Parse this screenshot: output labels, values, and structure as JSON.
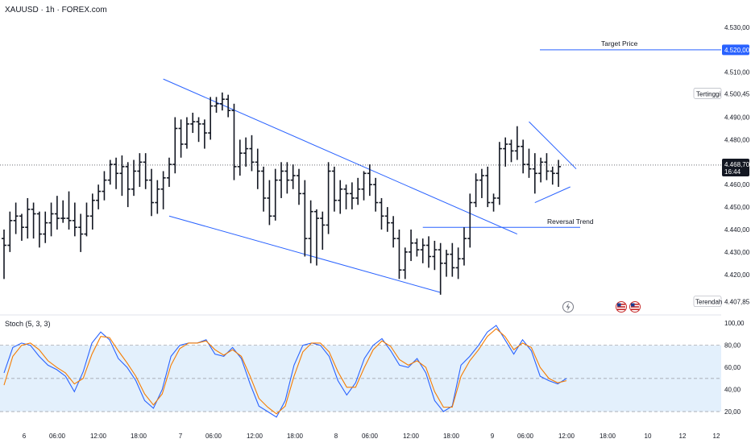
{
  "header": {
    "title": "XAUUSD · 1h · FOREX.com"
  },
  "chart_data": [
    {
      "type": "candlestick",
      "symbol": "XAUUSD",
      "timeframe": "1h",
      "broker": "FOREX.com",
      "ylim": [
        4402,
        4535
      ],
      "y_ticks": [
        {
          "value": 4530,
          "label": "4.530,00"
        },
        {
          "value": 4510,
          "label": "4.510,00"
        },
        {
          "value": 4490,
          "label": "4.490,00"
        },
        {
          "value": 4480,
          "label": "4.480,00"
        },
        {
          "value": 4460,
          "label": "4.460,00"
        },
        {
          "value": 4450,
          "label": "4.450,00"
        },
        {
          "value": 4440,
          "label": "4.440,00"
        },
        {
          "value": 4430,
          "label": "4.430,00"
        },
        {
          "value": 4420,
          "label": "4.420,00"
        }
      ],
      "x_ticks": [
        "6",
        "06:00",
        "12:00",
        "18:00",
        "7",
        "06:00",
        "12:00",
        "18:00",
        "8",
        "06:00",
        "12:00",
        "18:00",
        "9",
        "06:00",
        "12:00",
        "18:00",
        "10",
        "12",
        "12"
      ],
      "price_labels": {
        "target": {
          "value": 4520.0,
          "label": "4.520,00",
          "name": "Target Price"
        },
        "high": {
          "value": 4500.45,
          "label": "4.500,45",
          "name": "Tertinggi"
        },
        "current": {
          "value": 4468.7,
          "label": "4.468,70",
          "countdown": "16:44"
        },
        "low": {
          "value": 4407.85,
          "label": "4.407,85",
          "name": "Terendah"
        }
      },
      "annotations": [
        {
          "text": "Reversal Trend",
          "level": 4441
        }
      ],
      "bars": [
        [
          4436,
          4440,
          4418,
          4433
        ],
        [
          4433,
          4448,
          4430,
          4444
        ],
        [
          4444,
          4452,
          4438,
          4446
        ],
        [
          4446,
          4447,
          4435,
          4441
        ],
        [
          4441,
          4454,
          4436,
          4449
        ],
        [
          4449,
          4452,
          4436,
          4447
        ],
        [
          4447,
          4448,
          4432,
          4438
        ],
        [
          4438,
          4448,
          4434,
          4443
        ],
        [
          4443,
          4452,
          4437,
          4447
        ],
        [
          4447,
          4455,
          4440,
          4445
        ],
        [
          4445,
          4453,
          4443,
          4445
        ],
        [
          4445,
          4457,
          4440,
          4444
        ],
        [
          4444,
          4452,
          4437,
          4441
        ],
        [
          4441,
          4447,
          4430,
          4438
        ],
        [
          4438,
          4452,
          4437,
          4446
        ],
        [
          4446,
          4456,
          4440,
          4453
        ],
        [
          4453,
          4460,
          4449,
          4457
        ],
        [
          4457,
          4466,
          4453,
          4462
        ],
        [
          4462,
          4471,
          4460,
          4469
        ],
        [
          4469,
          4472,
          4458,
          4465
        ],
        [
          4465,
          4473,
          4455,
          4468
        ],
        [
          4468,
          4470,
          4450,
          4458
        ],
        [
          4458,
          4471,
          4455,
          4466
        ],
        [
          4466,
          4474,
          4459,
          4470
        ],
        [
          4470,
          4474,
          4458,
          4462
        ],
        [
          4462,
          4467,
          4446,
          4452
        ],
        [
          4452,
          4462,
          4447,
          4458
        ],
        [
          4458,
          4466,
          4449,
          4463
        ],
        [
          4463,
          4472,
          4459,
          4469
        ],
        [
          4469,
          4490,
          4465,
          4485
        ],
        [
          4485,
          4489,
          4472,
          4478
        ],
        [
          4478,
          4490,
          4476,
          4487
        ],
        [
          4487,
          4492,
          4483,
          4488
        ],
        [
          4488,
          4490,
          4479,
          4487
        ],
        [
          4487,
          4489,
          4476,
          4483
        ],
        [
          4483,
          4499,
          4480,
          4495
        ],
        [
          4495,
          4499,
          4492,
          4496
        ],
        [
          4496,
          4501,
          4493,
          4498
        ],
        [
          4498,
          4500,
          4490,
          4493
        ],
        [
          4493,
          4496,
          4462,
          4468
        ],
        [
          4468,
          4480,
          4464,
          4474
        ],
        [
          4474,
          4481,
          4468,
          4476
        ],
        [
          4476,
          4482,
          4466,
          4470
        ],
        [
          4470,
          4476,
          4458,
          4466
        ],
        [
          4466,
          4468,
          4448,
          4454
        ],
        [
          4454,
          4462,
          4442,
          4446
        ],
        [
          4446,
          4467,
          4444,
          4462
        ],
        [
          4462,
          4470,
          4454,
          4466
        ],
        [
          4466,
          4470,
          4456,
          4462
        ],
        [
          4462,
          4469,
          4458,
          4464
        ],
        [
          4464,
          4467,
          4451,
          4456
        ],
        [
          4456,
          4462,
          4428,
          4436
        ],
        [
          4436,
          4453,
          4425,
          4448
        ],
        [
          4448,
          4449,
          4424,
          4445
        ],
        [
          4445,
          4448,
          4431,
          4442
        ],
        [
          4442,
          4470,
          4438,
          4466
        ],
        [
          4466,
          4468,
          4448,
          4453
        ],
        [
          4453,
          4462,
          4447,
          4458
        ],
        [
          4458,
          4460,
          4449,
          4456
        ],
        [
          4456,
          4461,
          4449,
          4454
        ],
        [
          4454,
          4463,
          4451,
          4458
        ],
        [
          4458,
          4466,
          4453,
          4465
        ],
        [
          4465,
          4469,
          4455,
          4460
        ],
        [
          4460,
          4463,
          4448,
          4452
        ],
        [
          4452,
          4454,
          4440,
          4446
        ],
        [
          4446,
          4450,
          4439,
          4443
        ],
        [
          4443,
          4446,
          4432,
          4436
        ],
        [
          4436,
          4440,
          4418,
          4422
        ],
        [
          4422,
          4432,
          4418,
          4430
        ],
        [
          4430,
          4440,
          4426,
          4434
        ],
        [
          4434,
          4436,
          4428,
          4431
        ],
        [
          4431,
          4436,
          4425,
          4433
        ],
        [
          4433,
          4437,
          4423,
          4428
        ],
        [
          4428,
          4435,
          4422,
          4431
        ],
        [
          4431,
          4434,
          4411,
          4425
        ],
        [
          4425,
          4431,
          4419,
          4429
        ],
        [
          4429,
          4434,
          4419,
          4423
        ],
        [
          4423,
          4432,
          4418,
          4427
        ],
        [
          4427,
          4441,
          4424,
          4436
        ],
        [
          4436,
          4456,
          4432,
          4452
        ],
        [
          4452,
          4465,
          4450,
          4462
        ],
        [
          4462,
          4467,
          4454,
          4464
        ],
        [
          4464,
          4468,
          4450,
          4452
        ],
        [
          4452,
          4456,
          4448,
          4454
        ],
        [
          4454,
          4479,
          4451,
          4476
        ],
        [
          4476,
          4481,
          4468,
          4478
        ],
        [
          4478,
          4480,
          4470,
          4475
        ],
        [
          4475,
          4486,
          4471,
          4477
        ],
        [
          4477,
          4480,
          4465,
          4469
        ],
        [
          4469,
          4476,
          4463,
          4467
        ],
        [
          4467,
          4474,
          4456,
          4465
        ],
        [
          4465,
          4472,
          4461,
          4470
        ],
        [
          4470,
          4474,
          4462,
          4466
        ],
        [
          4466,
          4468,
          4460,
          4465
        ],
        [
          4465,
          4471,
          4459,
          4468
        ]
      ],
      "oscillator": {
        "label": "Stoch (5, 3, 3)",
        "ylim": [
          12,
          106
        ],
        "y_ticks": [
          {
            "value": 100,
            "label": "100,00"
          },
          {
            "value": 80,
            "label": "80,00"
          },
          {
            "value": 60,
            "label": "60,00"
          },
          {
            "value": 40,
            "label": "40,00"
          },
          {
            "value": 20,
            "label": "20,00"
          }
        ],
        "band": [
          20,
          80
        ],
        "mid": 50,
        "series": [
          {
            "color": "#2962ff",
            "values": [
              55,
              78,
              82,
              80,
              70,
              62,
              58,
              52,
              38,
              56,
              82,
              92,
              85,
              68,
              60,
              48,
              30,
              23,
              40,
              70,
              80,
              82,
              82,
              85,
              72,
              70,
              78,
              68,
              45,
              25,
              20,
              15,
              30,
              62,
              80,
              82,
              80,
              70,
              48,
              35,
              46,
              68,
              80,
              86,
              75,
              62,
              60,
              68,
              55,
              30,
              20,
              25,
              62,
              70,
              80,
              92,
              98,
              85,
              72,
              85,
              75,
              52,
              48,
              45,
              50
            ]
          },
          {
            "color": "#f57c00",
            "values": [
              44,
              70,
              80,
              82,
              76,
              66,
              60,
              55,
              45,
              50,
              72,
              88,
              87,
              75,
              64,
              52,
              36,
              26,
              36,
              62,
              77,
              82,
              82,
              84,
              76,
              71,
              76,
              70,
              52,
              32,
              24,
              18,
              25,
              52,
              74,
              82,
              82,
              74,
              56,
              42,
              42,
              60,
              76,
              84,
              79,
              67,
              62,
              66,
              60,
              38,
              24,
              24,
              52,
              66,
              76,
              88,
              95,
              88,
              76,
              82,
              78,
              60,
              50,
              46,
              48
            ]
          }
        ]
      }
    }
  ],
  "colors": {
    "line": "#2962ff",
    "bar": "#131722",
    "osc_fast": "#2962ff",
    "osc_slow": "#f57c00",
    "osc_band": "#e3f0fc"
  },
  "icons": [
    "lightning-icon",
    "us-flag-icon",
    "us-flag-icon"
  ]
}
